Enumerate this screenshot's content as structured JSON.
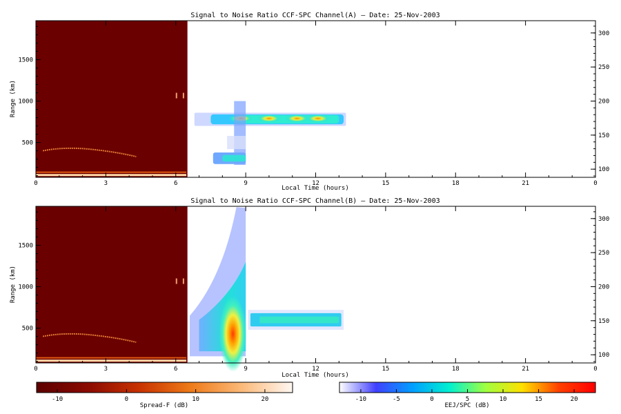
{
  "chart_data": [
    {
      "type": "heatmap",
      "title": "Signal to Noise Ratio CCF-SPC Channel(A) — Date: 25-Nov-2003",
      "xlabel": "Local Time (hours)",
      "ylabel": "Range (km)",
      "xlim": [
        0,
        24
      ],
      "ylim": [
        80,
        1970
      ],
      "xticks": [
        "0",
        "3",
        "6",
        "9",
        "12",
        "15",
        "18",
        "21",
        "0"
      ],
      "yticks": [
        500,
        1000,
        1500
      ],
      "y2lim": [
        88,
        318
      ],
      "y2ticks": [
        100,
        150,
        200,
        250,
        300
      ],
      "regions": [
        {
          "name": "Spread-F",
          "x": [
            0,
            6.5
          ],
          "y": [
            80,
            1970
          ]
        },
        {
          "name": "EEJ/SPC",
          "x": [
            6.6,
            13.2
          ],
          "y": [
            230,
            1000
          ]
        }
      ]
    },
    {
      "type": "heatmap",
      "title": "Signal to Noise Ratio CCF-SPC Channel(B) — Date: 25-Nov-2003",
      "xlabel": "Local Time (hours)",
      "ylabel": "Range (km)",
      "xlim": [
        0,
        24
      ],
      "ylim": [
        80,
        1970
      ],
      "xticks": [
        "0",
        "3",
        "6",
        "9",
        "12",
        "15",
        "18",
        "21",
        "0"
      ],
      "yticks": [
        500,
        1000,
        1500
      ],
      "y2lim": [
        88,
        318
      ],
      "y2ticks": [
        100,
        150,
        200,
        250,
        300
      ],
      "regions": [
        {
          "name": "Spread-F",
          "x": [
            0,
            6.5
          ],
          "y": [
            80,
            1970
          ]
        },
        {
          "name": "EEJ/SPC",
          "x": [
            6.6,
            13.2
          ],
          "y": [
            200,
            1950
          ]
        }
      ]
    }
  ],
  "colorbars": [
    {
      "label": "Spread-F (dB)",
      "range": [
        -13,
        24
      ],
      "ticks": [
        -10,
        0,
        10,
        20
      ],
      "colors": [
        "#5c0000",
        "#8a0a00",
        "#c83200",
        "#ee7a18",
        "#fbb978",
        "#fff8f2"
      ]
    },
    {
      "label": "EEJ/SPC (dB)",
      "range": [
        -13,
        23
      ],
      "ticks": [
        -10,
        -5,
        0,
        5,
        10,
        15,
        20
      ],
      "colors": [
        "#ffffff",
        "#4040ff",
        "#00a0ff",
        "#00f0d0",
        "#a0ff40",
        "#ffe000",
        "#ff4000",
        "#ff0000"
      ]
    }
  ]
}
